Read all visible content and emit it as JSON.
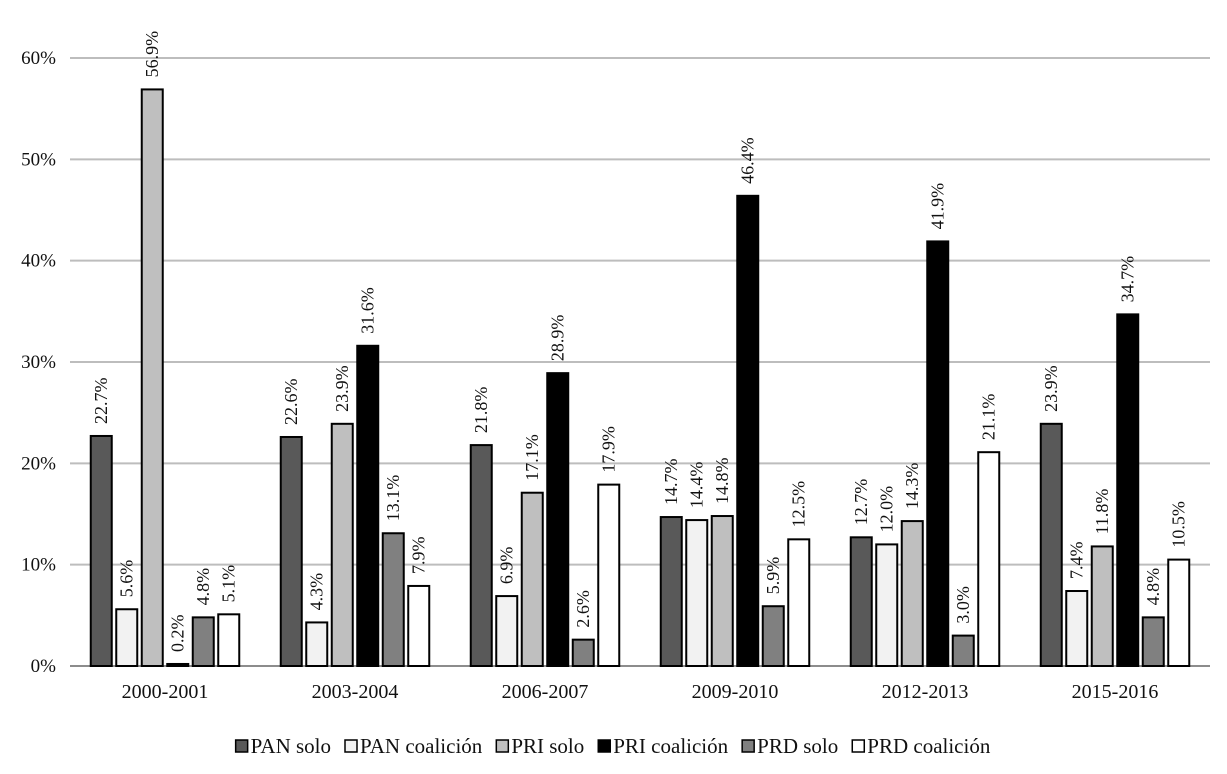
{
  "chart_data": {
    "type": "bar",
    "title": "",
    "xlabel": "",
    "ylabel": "",
    "ylim": [
      0,
      60
    ],
    "yticks": [
      0,
      10,
      20,
      30,
      40,
      50,
      60
    ],
    "ytick_labels": [
      "0%",
      "10%",
      "20%",
      "30%",
      "40%",
      "50%",
      "60%"
    ],
    "grid": true,
    "legend_position": "bottom",
    "categories": [
      "2000-2001",
      "2003-2004",
      "2006-2007",
      "2009-2010",
      "2012-2013",
      "2015-2016"
    ],
    "series": [
      {
        "name": "PAN solo",
        "color": "#595959",
        "values": [
          22.7,
          22.6,
          21.8,
          14.7,
          12.7,
          23.9
        ],
        "labels": [
          "22.7%",
          "22.6%",
          "21.8%",
          "14.7%",
          "12.7%",
          "23.9%"
        ]
      },
      {
        "name": "PAN coalición",
        "color": "#f2f2f2",
        "values": [
          5.6,
          4.3,
          6.9,
          14.4,
          12.0,
          7.4
        ],
        "labels": [
          "5.6%",
          "4.3%",
          "6.9%",
          "14.4%",
          "12.0%",
          "7.4%"
        ]
      },
      {
        "name": "PRI solo",
        "color": "#bfbfbf",
        "values": [
          56.9,
          23.9,
          17.1,
          14.8,
          14.3,
          11.8
        ],
        "labels": [
          "56.9%",
          "23.9%",
          "17.1%",
          "14.8%",
          "14.3%",
          "11.8%"
        ]
      },
      {
        "name": "PRI coalición",
        "color": "#000000",
        "values": [
          0.2,
          31.6,
          28.9,
          46.4,
          41.9,
          34.7
        ],
        "labels": [
          "0.2%",
          "31.6%",
          "28.9%",
          "46.4%",
          "41.9%",
          "34.7%"
        ]
      },
      {
        "name": "PRD solo",
        "color": "#808080",
        "values": [
          4.8,
          13.1,
          2.6,
          5.9,
          3.0,
          4.8
        ],
        "labels": [
          "4.8%",
          "13.1%",
          "2.6%",
          "5.9%",
          "3.0%",
          "4.8%"
        ]
      },
      {
        "name": "PRD coalición",
        "color": "#ffffff",
        "values": [
          5.1,
          7.9,
          17.9,
          12.5,
          21.1,
          10.5
        ],
        "labels": [
          "5.1%",
          "7.9%",
          "17.9%",
          "12.5%",
          "21.1%",
          "10.5%"
        ]
      }
    ]
  }
}
